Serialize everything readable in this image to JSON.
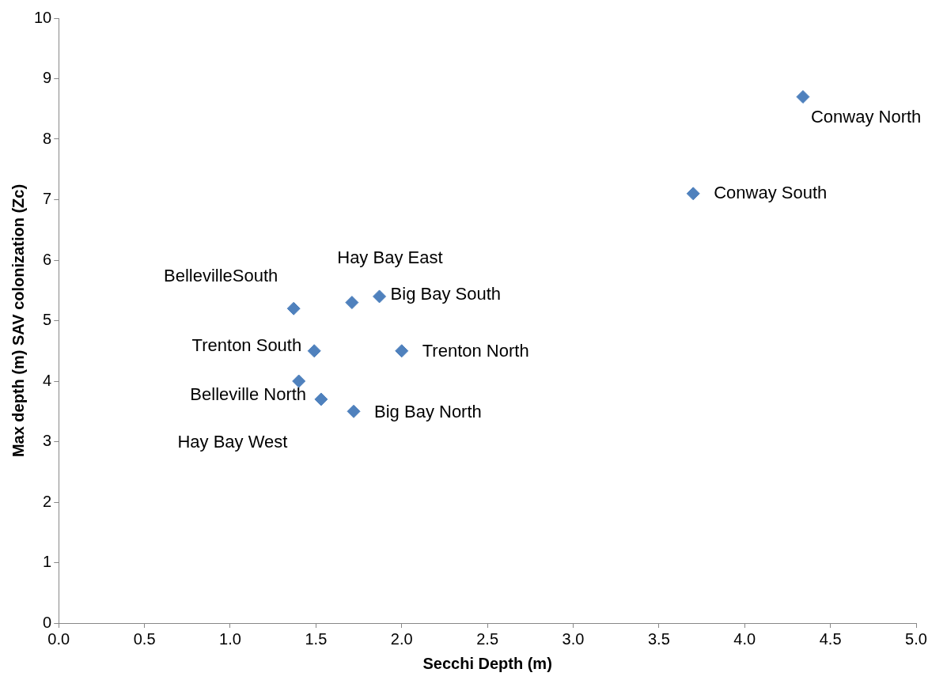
{
  "chart_data": {
    "type": "scatter",
    "xlabel": "Secchi Depth (m)",
    "ylabel": "Max depth (m) SAV colonization (Zc)",
    "x": [
      4.34,
      3.7,
      1.87,
      2.0,
      1.72,
      1.71,
      1.37,
      1.49,
      1.4,
      1.53
    ],
    "values": [
      8.7,
      7.1,
      5.4,
      4.5,
      3.5,
      5.3,
      5.2,
      4.5,
      4.0,
      3.7
    ],
    "value_labels": [
      "Conway North",
      "Conway South",
      "Big Bay South",
      "Trenton North",
      "Big Bay North",
      "Hay Bay East",
      "BellevilleSouth",
      "Trenton South",
      "Belleville North",
      "Hay Bay West"
    ],
    "color": "#4f81bd",
    "marker": "diamond",
    "grid": false,
    "legend": false,
    "xlim": [
      0,
      5
    ],
    "xticks": [
      {
        "value": 0,
        "label": "0.0"
      },
      {
        "value": 0.5,
        "label": "0.5"
      },
      {
        "value": 1,
        "label": "1.0"
      },
      {
        "value": 1.5,
        "label": "1.5"
      },
      {
        "value": 2,
        "label": "2.0"
      },
      {
        "value": 2.5,
        "label": "2.5"
      },
      {
        "value": 3,
        "label": "3.0"
      },
      {
        "value": 3.5,
        "label": "3.5"
      },
      {
        "value": 4,
        "label": "4.0"
      },
      {
        "value": 4.5,
        "label": "4.5"
      },
      {
        "value": 5,
        "label": "5.0"
      }
    ],
    "ylim": [
      0,
      10
    ],
    "yticks": [
      0,
      1,
      2,
      3,
      4,
      5,
      6,
      7,
      8,
      9,
      10
    ]
  }
}
